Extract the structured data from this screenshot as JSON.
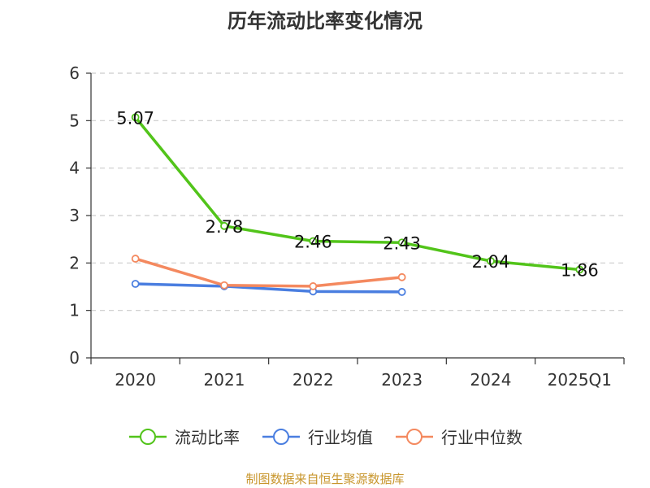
{
  "chart_data": {
    "type": "line",
    "title": "历年流动比率变化情况",
    "categories": [
      "2020",
      "2021",
      "2022",
      "2023",
      "2024",
      "2025Q1"
    ],
    "ylim": [
      0,
      6
    ],
    "yticks": [
      "0",
      "1",
      "2",
      "3",
      "4",
      "5",
      "6"
    ],
    "grid": true,
    "legend_position": "bottom",
    "series": [
      {
        "name": "流动比率",
        "color": "#52c41a",
        "values": [
          5.07,
          2.78,
          2.46,
          2.43,
          2.04,
          1.86
        ],
        "labels": [
          "5.07",
          "2.78",
          "2.46",
          "2.43",
          "2.04",
          "1.86"
        ]
      },
      {
        "name": "行业均值",
        "color": "#4a7ee0",
        "values": [
          1.56,
          1.51,
          1.4,
          1.39,
          null,
          null
        ]
      },
      {
        "name": "行业中位数",
        "color": "#f4895f",
        "values": [
          2.09,
          1.53,
          1.51,
          1.7,
          null,
          null
        ]
      }
    ]
  },
  "source": "制图数据来自恒生聚源数据库"
}
